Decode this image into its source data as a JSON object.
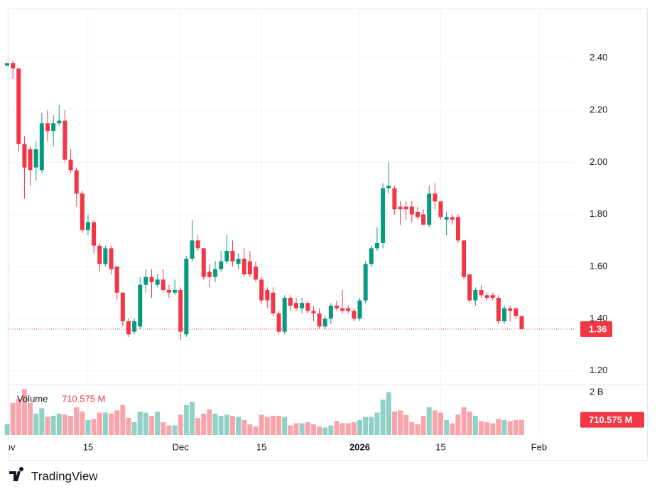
{
  "chart_data": {
    "type": "candlestick",
    "brand": "TradingView",
    "categories": [
      "Nov",
      null,
      null,
      null,
      null,
      null,
      null,
      null,
      null,
      null,
      null,
      null,
      null,
      null,
      "15",
      null,
      null,
      null,
      null,
      null,
      null,
      null,
      null,
      null,
      null,
      null,
      null,
      null,
      null,
      null,
      "Dec",
      null,
      null,
      null,
      null,
      null,
      null,
      null,
      null,
      null,
      null,
      null,
      null,
      null,
      "15",
      null,
      null,
      null,
      null,
      null,
      null,
      null,
      null,
      null,
      null,
      null,
      null,
      null,
      null,
      null,
      null,
      "2026",
      null,
      null,
      null,
      null,
      null,
      null,
      null,
      null,
      null,
      null,
      null,
      null,
      null,
      "15",
      null,
      null,
      null,
      null,
      null,
      null,
      null,
      null,
      null,
      null,
      null,
      null,
      null,
      null,
      null,
      null,
      "Feb"
    ],
    "open": [
      2.37,
      2.38,
      2.36,
      2.07,
      2.05,
      1.98,
      1.97,
      2.15,
      2.12,
      2.15,
      2.16,
      2.01,
      1.97,
      1.88,
      1.74,
      1.77,
      1.68,
      1.61,
      1.67,
      1.6,
      1.5,
      1.39,
      1.35,
      1.37,
      1.53,
      1.56,
      1.53,
      1.55,
      1.51,
      1.5,
      1.51,
      1.34,
      1.63,
      1.7,
      1.67,
      1.58,
      1.56,
      1.59,
      1.62,
      1.66,
      1.61,
      1.63,
      1.62,
      1.6,
      1.55,
      1.51,
      1.5,
      1.42,
      1.35,
      1.48,
      1.46,
      1.44,
      1.46,
      1.43,
      1.42,
      1.37,
      1.4,
      1.45,
      1.44,
      1.44,
      1.43,
      1.4,
      1.47,
      1.61,
      1.67,
      1.69,
      1.9,
      1.9,
      1.83,
      1.83,
      1.83,
      1.81,
      1.8,
      1.76,
      1.88,
      1.85,
      1.78,
      1.79,
      1.79,
      1.7,
      1.57,
      1.47,
      1.51,
      1.49,
      1.49,
      1.48,
      1.39,
      1.44,
      1.44,
      1.41,
      null,
      null,
      null
    ],
    "high": [
      2.38,
      2.39,
      2.36,
      2.1,
      2.06,
      2.08,
      2.19,
      2.2,
      2.18,
      2.22,
      2.2,
      2.05,
      1.98,
      1.89,
      1.8,
      1.78,
      1.69,
      1.68,
      1.68,
      1.6,
      1.5,
      1.4,
      1.4,
      1.56,
      1.59,
      1.59,
      1.57,
      1.59,
      1.53,
      1.55,
      1.52,
      1.64,
      1.78,
      1.72,
      1.67,
      1.61,
      1.62,
      1.66,
      1.72,
      1.7,
      1.65,
      1.67,
      1.66,
      1.62,
      1.56,
      1.52,
      1.52,
      1.43,
      1.49,
      1.49,
      1.48,
      1.48,
      1.47,
      1.45,
      1.44,
      1.41,
      1.46,
      1.47,
      1.51,
      1.45,
      1.44,
      1.48,
      1.62,
      1.68,
      1.75,
      1.92,
      2.0,
      1.91,
      1.85,
      1.85,
      1.85,
      1.83,
      1.82,
      1.91,
      1.92,
      1.85,
      1.81,
      1.8,
      1.8,
      1.7,
      1.57,
      1.52,
      1.53,
      1.5,
      1.5,
      1.49,
      1.45,
      1.45,
      1.44,
      1.41,
      null,
      null,
      null
    ],
    "low": [
      2.37,
      2.32,
      2.04,
      1.86,
      1.91,
      1.93,
      1.96,
      2.08,
      2.06,
      2.14,
      2.0,
      1.96,
      1.83,
      1.73,
      1.72,
      1.65,
      1.58,
      1.6,
      1.57,
      1.47,
      1.37,
      1.33,
      1.34,
      1.36,
      1.5,
      1.48,
      1.52,
      1.5,
      1.48,
      1.49,
      1.32,
      1.33,
      1.62,
      1.66,
      1.55,
      1.52,
      1.54,
      1.58,
      1.61,
      1.6,
      1.59,
      1.56,
      1.56,
      1.54,
      1.46,
      1.44,
      1.41,
      1.34,
      1.34,
      1.43,
      1.43,
      1.42,
      1.42,
      1.39,
      1.36,
      1.36,
      1.38,
      1.43,
      1.42,
      1.42,
      1.39,
      1.39,
      1.46,
      1.6,
      1.66,
      1.67,
      1.88,
      1.8,
      1.76,
      1.78,
      1.77,
      1.78,
      1.76,
      1.75,
      1.82,
      1.78,
      1.72,
      1.76,
      1.69,
      1.55,
      1.46,
      1.45,
      1.48,
      1.47,
      1.47,
      1.38,
      1.38,
      1.39,
      1.4,
      1.36,
      null,
      null,
      null
    ],
    "close": [
      2.38,
      2.36,
      2.07,
      1.98,
      1.97,
      2.05,
      2.15,
      2.12,
      2.15,
      2.16,
      2.01,
      1.97,
      1.88,
      1.74,
      1.77,
      1.68,
      1.61,
      1.67,
      1.59,
      1.5,
      1.39,
      1.34,
      1.39,
      1.53,
      1.56,
      1.54,
      1.55,
      1.51,
      1.5,
      1.51,
      1.35,
      1.63,
      1.7,
      1.67,
      1.56,
      1.56,
      1.59,
      1.62,
      1.66,
      1.62,
      1.63,
      1.57,
      1.57,
      1.55,
      1.47,
      1.47,
      1.42,
      1.35,
      1.48,
      1.45,
      1.44,
      1.46,
      1.43,
      1.42,
      1.37,
      1.4,
      1.45,
      1.44,
      1.43,
      1.43,
      1.4,
      1.47,
      1.61,
      1.67,
      1.69,
      1.9,
      1.91,
      1.82,
      1.82,
      1.82,
      1.8,
      1.79,
      1.76,
      1.88,
      1.85,
      1.79,
      1.79,
      1.78,
      1.7,
      1.56,
      1.47,
      1.51,
      1.49,
      1.48,
      1.48,
      1.39,
      1.44,
      1.43,
      1.41,
      1.36,
      null,
      null,
      null
    ],
    "up_color": "#089981",
    "down_color": "#f23645",
    "ylim": [
      1.15,
      2.59
    ],
    "yticks": [
      {
        "value": 1.2,
        "label": "1.20"
      },
      {
        "value": 1.4,
        "label": "1.40"
      },
      {
        "value": 1.6,
        "label": "1.60"
      },
      {
        "value": 1.8,
        "label": "1.80"
      },
      {
        "value": 2.0,
        "label": "2.00"
      },
      {
        "value": 2.2,
        "label": "2.20"
      },
      {
        "value": 2.4,
        "label": "2.40"
      }
    ],
    "last_price": 1.36,
    "grid": true,
    "volume": {
      "name": "Volume",
      "values": [
        500,
        1500,
        1700,
        2150,
        1500,
        1000,
        1250,
        850,
        900,
        1000,
        950,
        900,
        1300,
        1100,
        700,
        750,
        1050,
        1050,
        1000,
        1150,
        1400,
        800,
        600,
        1100,
        1050,
        900,
        1100,
        600,
        450,
        450,
        950,
        1400,
        1550,
        800,
        1000,
        1200,
        1000,
        900,
        950,
        900,
        850,
        700,
        500,
        400,
        950,
        850,
        900,
        900,
        850,
        450,
        550,
        550,
        600,
        500,
        400,
        350,
        450,
        650,
        550,
        550,
        600,
        700,
        850,
        850,
        1050,
        1650,
        2000,
        1100,
        1150,
        950,
        600,
        500,
        900,
        1300,
        1150,
        1050,
        700,
        550,
        950,
        1300,
        1100,
        900,
        650,
        600,
        550,
        750,
        700,
        650,
        700,
        710.575,
        null,
        null,
        null
      ],
      "ylim": [
        0,
        2230
      ],
      "yticks": [
        {
          "value": 2000,
          "label": "2 B"
        }
      ],
      "last": {
        "value": 710.575,
        "label": "710.575 M"
      }
    }
  }
}
